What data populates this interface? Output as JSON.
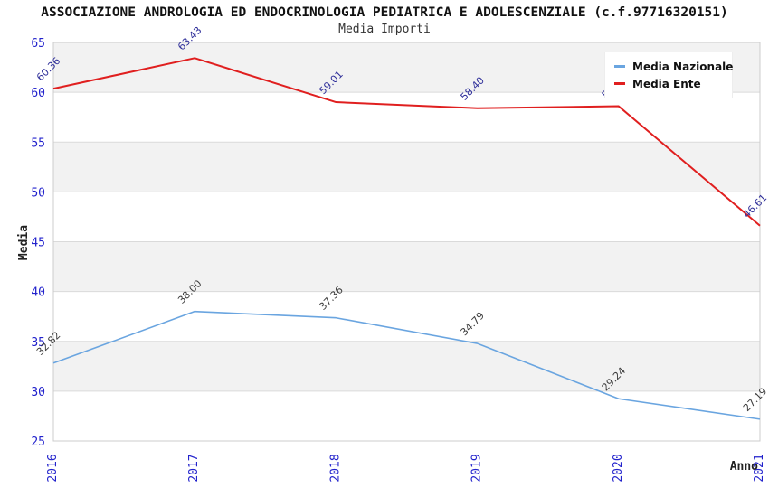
{
  "chart_data": {
    "type": "line",
    "title": "ASSOCIAZIONE ANDROLOGIA ED ENDOCRINOLOGIA PEDIATRICA E ADOLESCENZIALE (c.f.97716320151)",
    "subtitle": "Media Importi",
    "xlabel": "Anno",
    "ylabel": "Media",
    "x": [
      "2016",
      "2017",
      "2018",
      "2019",
      "2020",
      "2021"
    ],
    "series": [
      {
        "name": "Media Nazionale",
        "color": "#6aa5e0",
        "label_color": "#3c3c3c",
        "stroke_width": 1.6,
        "values": [
          32.82,
          38.0,
          37.36,
          34.79,
          29.24,
          27.19
        ],
        "labels": [
          "32.82",
          "38.00",
          "37.36",
          "34.79",
          "29.24",
          "27.19"
        ]
      },
      {
        "name": "Media Ente",
        "color": "#e01f1f",
        "label_color": "#2e2e99",
        "stroke_width": 2,
        "values": [
          60.36,
          63.43,
          59.01,
          58.4,
          58.6,
          46.61
        ],
        "labels": [
          "60.36",
          "63.43",
          "59.01",
          "58.40",
          "58.6",
          "46.61"
        ]
      }
    ],
    "ylim": [
      25,
      65
    ],
    "ytick_step": 5,
    "yticks": [
      25,
      30,
      35,
      40,
      45,
      50,
      55,
      60,
      65
    ],
    "grid": true,
    "legend_position": "top-right",
    "band_colors": [
      "#f2f2f2",
      "#ffffff"
    ],
    "grid_color": "#dadada",
    "border_color": "#cccccc",
    "tick_color": "#2222cc",
    "label_rotation_deg": -45,
    "xtick_rotation_deg": -90
  }
}
